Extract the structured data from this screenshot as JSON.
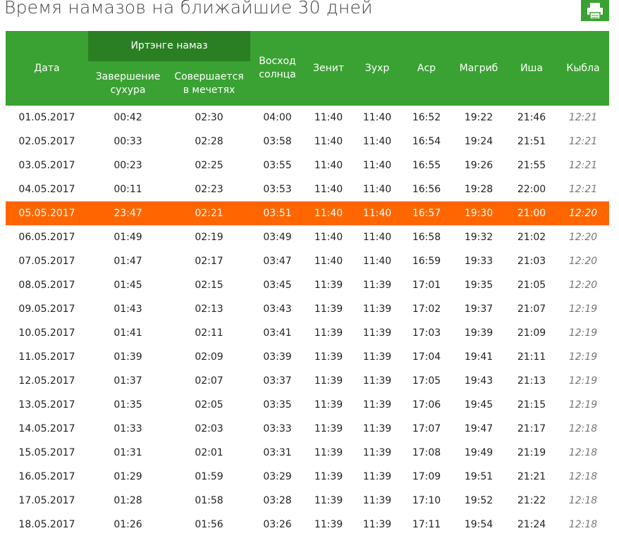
{
  "title": "Время намазов на ближайшие 30 дней",
  "header": {
    "group": "Иртэнге намаз",
    "columns": [
      "Дата",
      "Завершение\nсухура",
      "Совершается\nв мечетях",
      "Восход\nсолнца",
      "Зенит",
      "Зухр",
      "Аср",
      "Магриб",
      "Иша",
      "Кыбла"
    ]
  },
  "highlighted_row": 4,
  "rows": [
    [
      "01.05.2017",
      "00:42",
      "02:30",
      "04:00",
      "11:40",
      "11:40",
      "16:52",
      "19:22",
      "21:46",
      "12:21"
    ],
    [
      "02.05.2017",
      "00:33",
      "02:28",
      "03:58",
      "11:40",
      "11:40",
      "16:54",
      "19:24",
      "21:51",
      "12:21"
    ],
    [
      "03.05.2017",
      "00:23",
      "02:25",
      "03:55",
      "11:40",
      "11:40",
      "16:55",
      "19:26",
      "21:55",
      "12:21"
    ],
    [
      "04.05.2017",
      "00:11",
      "02:23",
      "03:53",
      "11:40",
      "11:40",
      "16:56",
      "19:28",
      "22:00",
      "12:21"
    ],
    [
      "05.05.2017",
      "23:47",
      "02:21",
      "03:51",
      "11:40",
      "11:40",
      "16:57",
      "19:30",
      "21:00",
      "12:20"
    ],
    [
      "06.05.2017",
      "01:49",
      "02:19",
      "03:49",
      "11:40",
      "11:40",
      "16:58",
      "19:32",
      "21:02",
      "12:20"
    ],
    [
      "07.05.2017",
      "01:47",
      "02:17",
      "03:47",
      "11:40",
      "11:40",
      "16:59",
      "19:33",
      "21:03",
      "12:20"
    ],
    [
      "08.05.2017",
      "01:45",
      "02:15",
      "03:45",
      "11:39",
      "11:39",
      "17:01",
      "19:35",
      "21:05",
      "12:20"
    ],
    [
      "09.05.2017",
      "01:43",
      "02:13",
      "03:43",
      "11:39",
      "11:39",
      "17:02",
      "19:37",
      "21:07",
      "12:19"
    ],
    [
      "10.05.2017",
      "01:41",
      "02:11",
      "03:41",
      "11:39",
      "11:39",
      "17:03",
      "19:39",
      "21:09",
      "12:19"
    ],
    [
      "11.05.2017",
      "01:39",
      "02:09",
      "03:39",
      "11:39",
      "11:39",
      "17:04",
      "19:41",
      "21:11",
      "12:19"
    ],
    [
      "12.05.2017",
      "01:37",
      "02:07",
      "03:37",
      "11:39",
      "11:39",
      "17:05",
      "19:43",
      "21:13",
      "12:19"
    ],
    [
      "13.05.2017",
      "01:35",
      "02:05",
      "03:35",
      "11:39",
      "11:39",
      "17:06",
      "19:45",
      "21:15",
      "12:19"
    ],
    [
      "14.05.2017",
      "01:33",
      "02:03",
      "03:33",
      "11:39",
      "11:39",
      "17:07",
      "19:47",
      "21:17",
      "12:18"
    ],
    [
      "15.05.2017",
      "01:31",
      "02:01",
      "03:31",
      "11:39",
      "11:39",
      "17:08",
      "19:49",
      "21:19",
      "12:18"
    ],
    [
      "16.05.2017",
      "01:29",
      "01:59",
      "03:29",
      "11:39",
      "11:39",
      "17:09",
      "19:51",
      "21:21",
      "12:18"
    ],
    [
      "17.05.2017",
      "01:28",
      "01:58",
      "03:28",
      "11:39",
      "11:39",
      "17:10",
      "19:52",
      "21:22",
      "12:18"
    ],
    [
      "18.05.2017",
      "01:26",
      "01:56",
      "03:26",
      "11:39",
      "11:39",
      "17:11",
      "19:54",
      "21:24",
      "12:18"
    ]
  ]
}
